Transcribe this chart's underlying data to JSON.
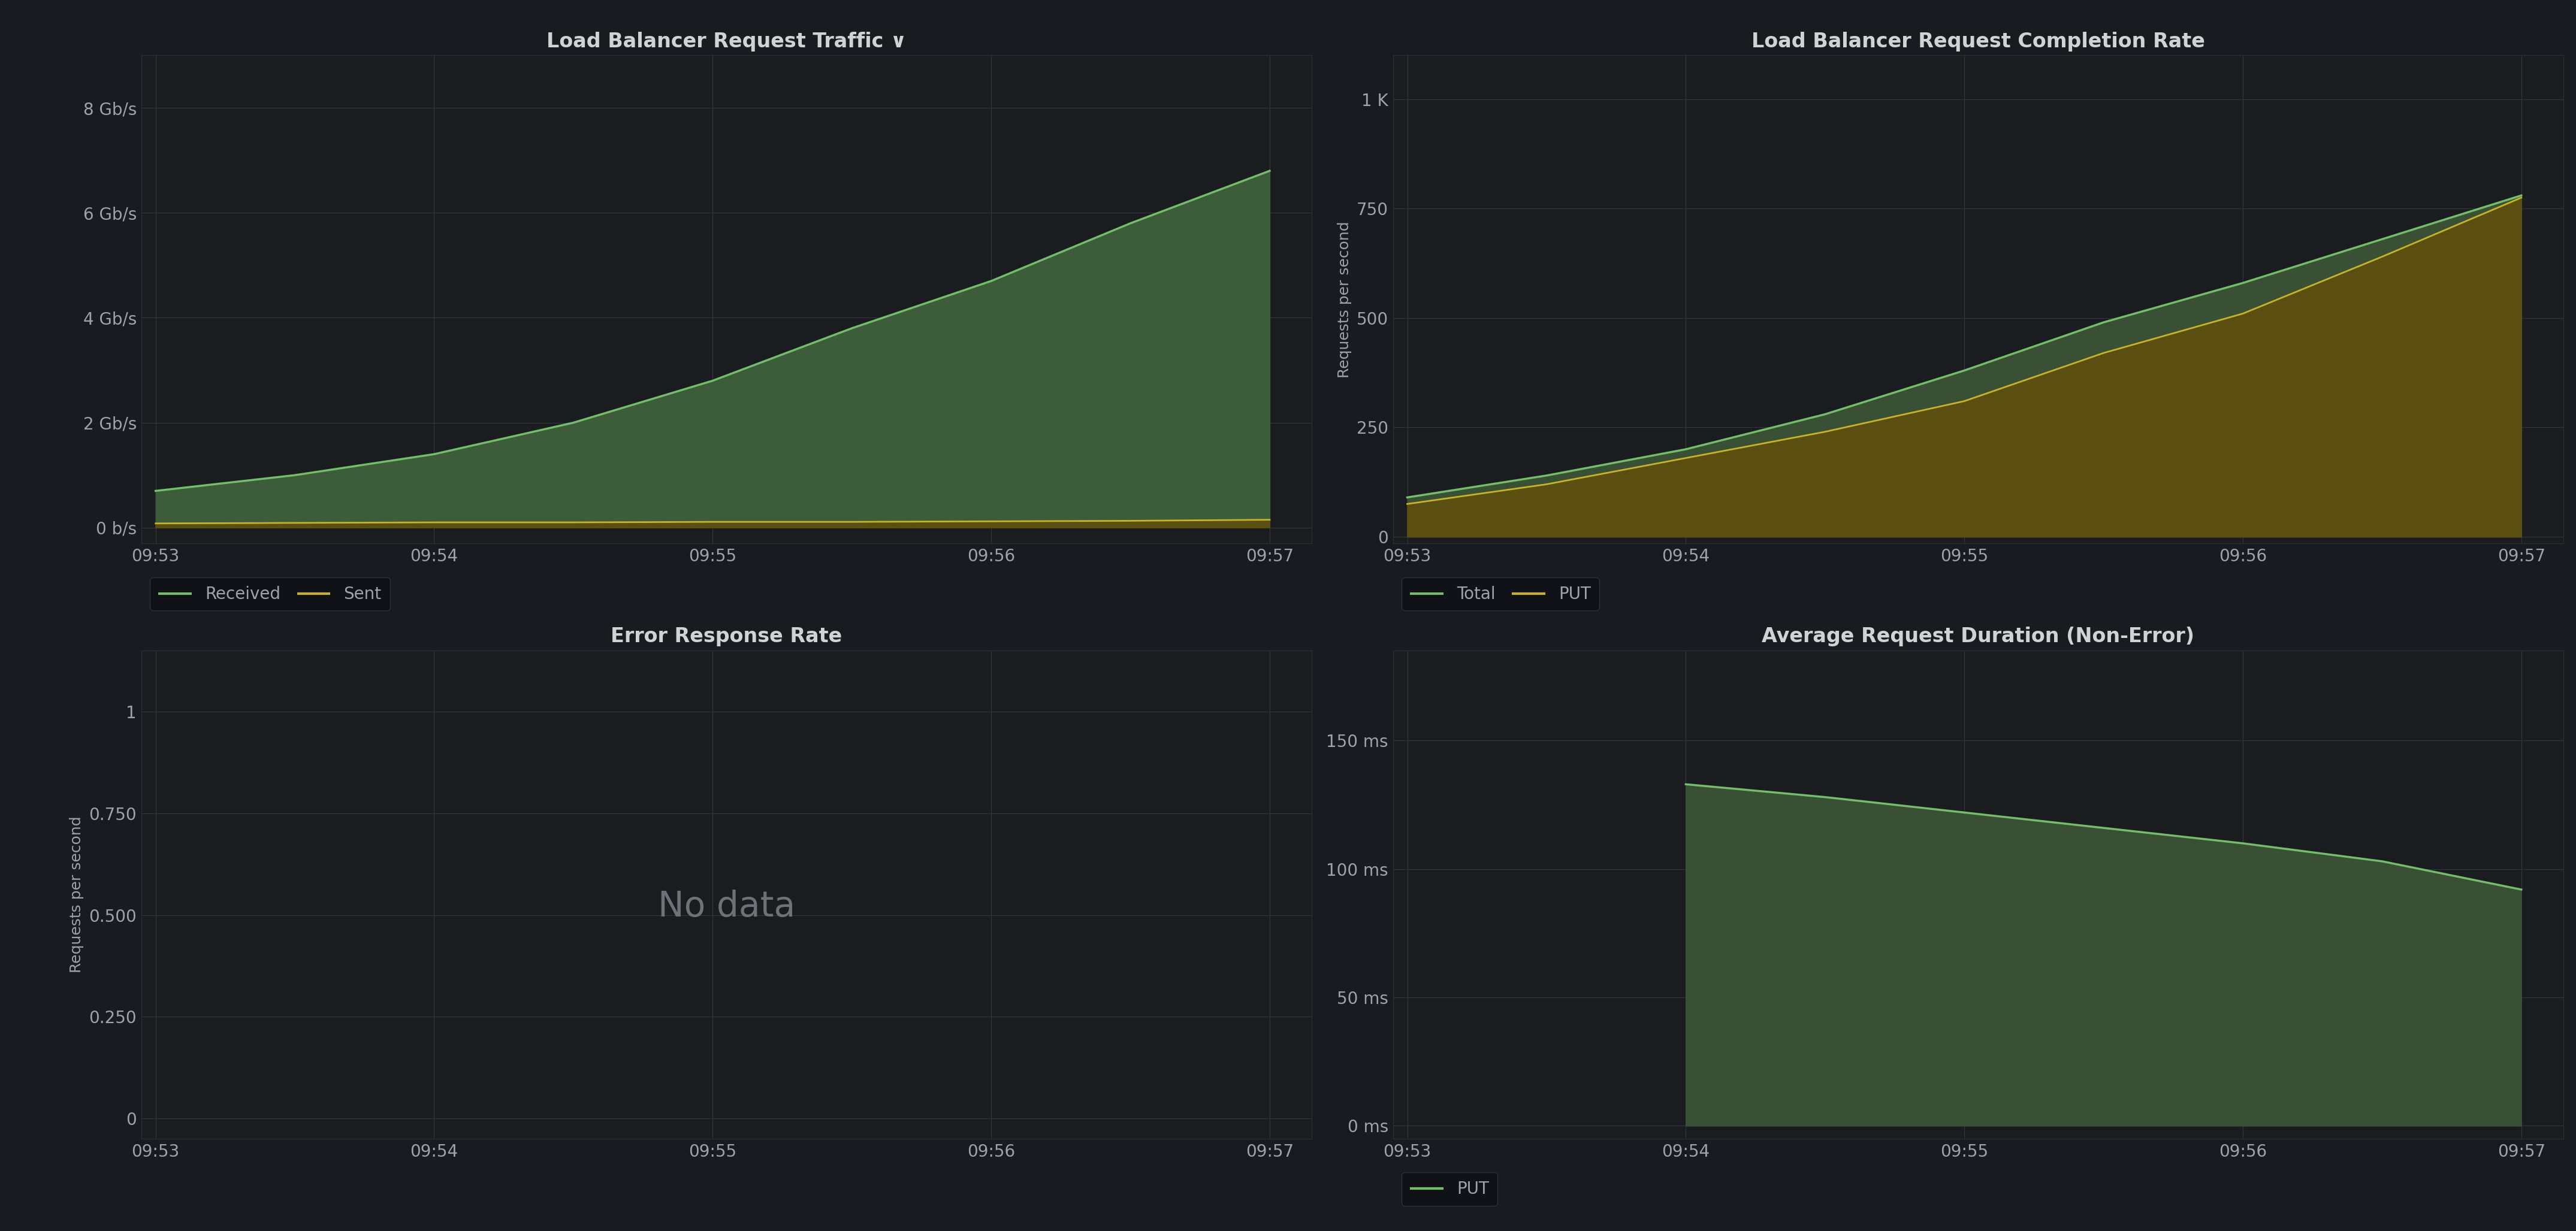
{
  "bg_color": "#181b1f",
  "panel_bg": "#111217",
  "plot_bg": "#1a1c20",
  "grid_color": "#333740",
  "text_color": "#9ea3a8",
  "title_color": "#d0d2d6",
  "border_color": "#2c3038",
  "separator_color": "#222428",
  "top_left": {
    "title": "Load Balancer Request Traffic ∨",
    "yticks": [
      "0 b/s",
      "2 Gb/s",
      "4 Gb/s",
      "6 Gb/s",
      "8 Gb/s"
    ],
    "ytick_vals": [
      0,
      2,
      4,
      6,
      8
    ],
    "ylim": [
      -0.3,
      9.0
    ],
    "xtick_labels": [
      "09:53",
      "09:54",
      "09:55",
      "09:56",
      "09:57"
    ],
    "xtick_vals": [
      0,
      1,
      2,
      3,
      4
    ],
    "xlim": [
      -0.05,
      4.15
    ],
    "received_x": [
      0,
      0.5,
      1,
      1.5,
      2,
      2.5,
      3,
      3.5,
      4
    ],
    "received_y": [
      0.7,
      1.0,
      1.4,
      2.0,
      2.8,
      3.8,
      4.7,
      5.8,
      6.8
    ],
    "sent_x": [
      0,
      0.5,
      1,
      1.5,
      2,
      2.5,
      3,
      3.5,
      4
    ],
    "sent_y": [
      0.08,
      0.09,
      0.1,
      0.1,
      0.11,
      0.11,
      0.12,
      0.13,
      0.15
    ],
    "received_color": "#73bf69",
    "received_fill": "#3d5c3a",
    "sent_color": "#c8b422",
    "sent_fill": "#5a4f10",
    "legend": [
      "Received",
      "Sent"
    ]
  },
  "top_right": {
    "title": "Load Balancer Request Completion Rate",
    "yticks": [
      "0",
      "250",
      "500",
      "750",
      "1 K"
    ],
    "ytick_vals": [
      0,
      250,
      500,
      750,
      1000
    ],
    "ylim": [
      -15,
      1100
    ],
    "ylabel": "Requests per second",
    "xtick_labels": [
      "09:53",
      "09:54",
      "09:55",
      "09:56",
      "09:57"
    ],
    "xtick_vals": [
      0,
      1,
      2,
      3,
      4
    ],
    "xlim": [
      -0.05,
      4.15
    ],
    "total_x": [
      0,
      0.5,
      1,
      1.5,
      2,
      2.5,
      3,
      3.5,
      4
    ],
    "total_y": [
      90,
      140,
      200,
      280,
      380,
      490,
      580,
      680,
      780
    ],
    "put_x": [
      0,
      0.5,
      1,
      1.5,
      2,
      2.5,
      3,
      3.5,
      4
    ],
    "put_y": [
      75,
      120,
      180,
      240,
      310,
      420,
      510,
      640,
      775
    ],
    "total_color": "#73bf69",
    "total_fill": "#3a5035",
    "put_color": "#c8b422",
    "put_fill": "#5a4f10",
    "legend": [
      "Total",
      "PUT"
    ]
  },
  "bottom_left": {
    "title": "Error Response Rate",
    "yticks": [
      "0",
      "0.250",
      "0.500",
      "0.750",
      "1"
    ],
    "ytick_vals": [
      0,
      0.25,
      0.5,
      0.75,
      1.0
    ],
    "ylim": [
      -0.05,
      1.15
    ],
    "ylabel": "Requests per second",
    "xtick_labels": [
      "09:53",
      "09:54",
      "09:55",
      "09:56",
      "09:57"
    ],
    "xtick_vals": [
      0,
      1,
      2,
      3,
      4
    ],
    "xlim": [
      -0.05,
      4.15
    ],
    "no_data_text": "No data",
    "no_data_color": "#6e7178"
  },
  "bottom_right": {
    "title": "Average Request Duration (Non-Error)",
    "yticks": [
      "0 ms",
      "50 ms",
      "100 ms",
      "150 ms"
    ],
    "ytick_vals": [
      0,
      50,
      100,
      150
    ],
    "ylim": [
      -5,
      185
    ],
    "xtick_labels": [
      "09:53",
      "09:54",
      "09:55",
      "09:56",
      "09:57"
    ],
    "xtick_vals": [
      0,
      1,
      2,
      3,
      4
    ],
    "xlim": [
      -0.05,
      4.15
    ],
    "put_x": [
      1,
      1.5,
      2,
      2.5,
      3,
      3.5,
      4
    ],
    "put_y": [
      133,
      128,
      122,
      116,
      110,
      103,
      92
    ],
    "put_color": "#73bf69",
    "put_fill": "#3a5035",
    "legend": [
      "PUT"
    ]
  }
}
